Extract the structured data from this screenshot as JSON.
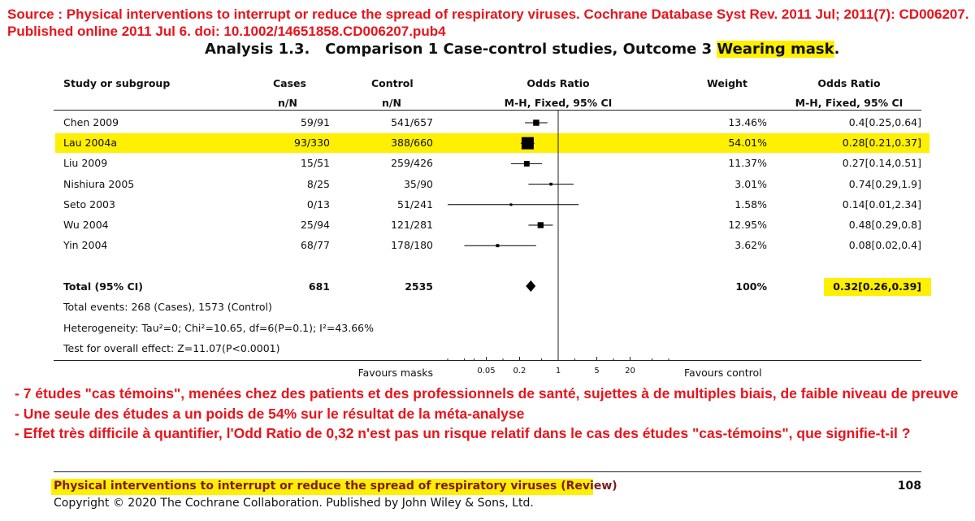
{
  "source": {
    "line1": "Source : Physical interventions to interrupt or reduce the spread of respiratory viruses. Cochrane Database Syst Rev. 2011 Jul; 2011(7): CD006207.",
    "line2": "Published online 2011 Jul 6. doi: 10.1002/14651858.CD006207.pub4"
  },
  "analysis_title": {
    "main": "Analysis 1.3.   Comparison 1 Case-control studies, Outcome 3 ",
    "highlight": "Wearing mask",
    "end": "."
  },
  "table_headers": {
    "study": "Study or subgroup",
    "cases": "Cases",
    "cases_sub": "n/N",
    "control": "Control",
    "control_sub": "n/N",
    "or_plot": "Odds Ratio",
    "or_plot_sub": "M-H, Fixed, 95% CI",
    "weight": "Weight",
    "or": "Odds Ratio",
    "or_sub": "M-H, Fixed, 95% CI"
  },
  "totals": {
    "label": "Total (95% CI)",
    "cases": "681",
    "control": "2535",
    "weight": "100%",
    "or": "0.32[0.26,0.39]"
  },
  "stats": {
    "events": "Total events: 268 (Cases), 1573 (Control)",
    "heterogeneity": "Heterogeneity: Tau²=0; Chi²=10.65, df=6(P=0.1); I²=43.66%",
    "overall": "Test for overall effect: Z=11.07(P<0.0001)"
  },
  "axis": {
    "favours_left": "Favours masks",
    "favours_right": "Favours control"
  },
  "notes": [
    "- 7 études \"cas témoins\", menées chez des patients et des professionnels de santé, sujettes à de multiples biais, de faible niveau de preuve",
    "- Une seule des études a un poids de 54% sur le résultat de la méta-analyse",
    "- Effet très difficile à quantifier, l'Odd Ratio de 0,32 n'est pas un risque relatif dans le cas des études \"cas-témoins\", que signifie-t-il ?"
  ],
  "footer": {
    "title": "Physical interventions to interrupt or reduce the spread of respiratory viruses (Review)",
    "page": "108",
    "copyright": "Copyright © 2020 The Cochrane Collaboration. Published by John Wiley & Sons, Ltd."
  },
  "colors": {
    "highlight": "#ffef00",
    "note_red": "#e8141c",
    "marker": "#000000"
  },
  "chart_data": {
    "type": "forest",
    "scale": "log",
    "xlim": [
      0.01,
      100
    ],
    "ticks": [
      "0.05",
      "0.2",
      "1",
      "5",
      "20"
    ],
    "studies": [
      {
        "study": "Chen 2009",
        "cases": "59/91",
        "control": "541/657",
        "weight": "13.46%",
        "or_text": "0.4[0.25,0.64]",
        "or": 0.4,
        "lo": 0.25,
        "hi": 0.64,
        "w": 13.46
      },
      {
        "study": "Lau 2004a",
        "cases": "93/330",
        "control": "388/660",
        "weight": "54.01%",
        "or_text": "0.28[0.21,0.37]",
        "or": 0.28,
        "lo": 0.21,
        "hi": 0.37,
        "w": 54.01,
        "highlight": true
      },
      {
        "study": "Liu 2009",
        "cases": "15/51",
        "control": "259/426",
        "weight": "11.37%",
        "or_text": "0.27[0.14,0.51]",
        "or": 0.27,
        "lo": 0.14,
        "hi": 0.51,
        "w": 11.37
      },
      {
        "study": "Nishiura 2005",
        "cases": "8/25",
        "control": "35/90",
        "weight": "3.01%",
        "or_text": "0.74[0.29,1.9]",
        "or": 0.74,
        "lo": 0.29,
        "hi": 1.9,
        "w": 3.01
      },
      {
        "study": "Seto 2003",
        "cases": "0/13",
        "control": "51/241",
        "weight": "1.58%",
        "or_text": "0.14[0.01,2.34]",
        "or": 0.14,
        "lo": 0.01,
        "hi": 2.34,
        "w": 1.58
      },
      {
        "study": "Wu 2004",
        "cases": "25/94",
        "control": "121/281",
        "weight": "12.95%",
        "or_text": "0.48[0.29,0.8]",
        "or": 0.48,
        "lo": 0.29,
        "hi": 0.8,
        "w": 12.95
      },
      {
        "study": "Yin 2004",
        "cases": "68/77",
        "control": "178/180",
        "weight": "3.62%",
        "or_text": "0.08[0.02,0.4]",
        "or": 0.08,
        "lo": 0.02,
        "hi": 0.4,
        "w": 3.62
      }
    ],
    "total": {
      "or": 0.32,
      "lo": 0.26,
      "hi": 0.39
    }
  }
}
